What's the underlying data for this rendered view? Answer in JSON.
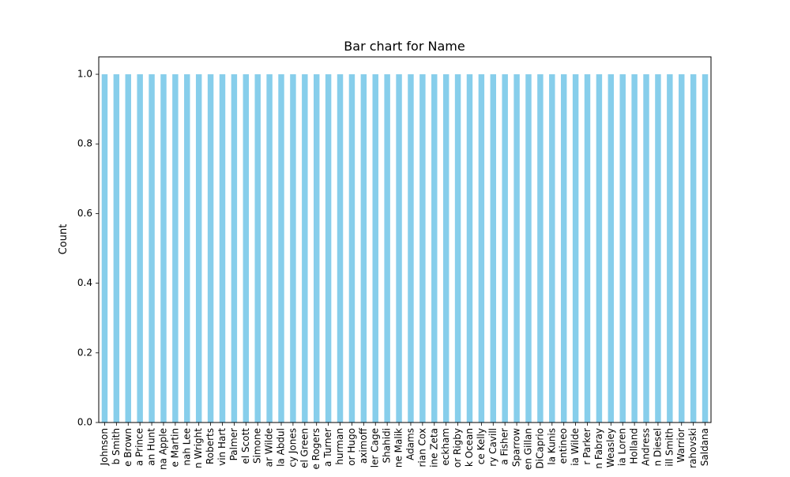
{
  "chart_data": {
    "type": "bar",
    "title": "Bar chart for Name",
    "xlabel": "",
    "ylabel": "Count",
    "ylim": [
      0,
      1.05
    ],
    "yticks": [
      "0.0",
      "0.2",
      "0.4",
      "0.6",
      "0.8",
      "1.0"
    ],
    "ytick_values": [
      0.0,
      0.2,
      0.4,
      0.6,
      0.8,
      1.0
    ],
    "grid": false,
    "bar_color": "#87ceeb",
    "categories": [
      "Johnson",
      "b Smith",
      "e Brown",
      "a Prince",
      "an Hunt",
      "na Apple",
      "e Martin",
      "nah Lee",
      "n Wright",
      "Roberts",
      "vin Hart",
      "Palmer",
      "el Scott",
      "Simone",
      "ar Wilde",
      "la Abdul",
      "cy Jones",
      "el Green",
      "e Rogers",
      "a Turner",
      "hurman",
      "or Hugo",
      "aximoff",
      "ler Cage",
      "Shahidi",
      "ne Malik",
      "Adams",
      "rian Cox",
      "ine Zeta",
      "eckham",
      "or Rigby",
      "k Ocean",
      "ce Kelly",
      "ry Cavill",
      "a Fisher",
      "Sparrow",
      "en Gillan",
      "DiCaprio",
      "la Kunis",
      "entineo",
      "ia Wilde",
      "r Parker",
      "n Fabray",
      "Weasley",
      "ia Loren",
      "Holland",
      "Andress",
      "n Diesel",
      "ill Smith",
      "Warrior",
      "rahovski",
      "Saldana"
    ],
    "values": [
      1,
      1,
      1,
      1,
      1,
      1,
      1,
      1,
      1,
      1,
      1,
      1,
      1,
      1,
      1,
      1,
      1,
      1,
      1,
      1,
      1,
      1,
      1,
      1,
      1,
      1,
      1,
      1,
      1,
      1,
      1,
      1,
      1,
      1,
      1,
      1,
      1,
      1,
      1,
      1,
      1,
      1,
      1,
      1,
      1,
      1,
      1,
      1,
      1,
      1,
      1,
      1
    ]
  }
}
